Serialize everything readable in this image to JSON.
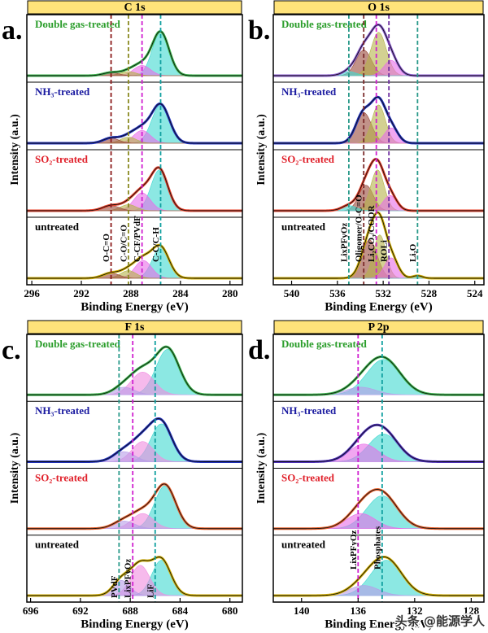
{
  "watermark": "头条 @能源学人",
  "chart_data": [
    {
      "type": "xps",
      "panel_label": "a.",
      "title": "C 1s",
      "xlabel": "Binding Energy (eV)",
      "ylabel": "Intensity (a.u.)",
      "xlim": [
        296.4,
        279
      ],
      "xticks": [
        296,
        292,
        288,
        284,
        280
      ],
      "ylim": [
        0,
        1.1
      ],
      "reference_lines": [
        {
          "x": 289.6,
          "label": "O-C=O",
          "color": "#8b1a1a"
        },
        {
          "x": 288.2,
          "label": "C-O/C=O",
          "color": "#8a8a20"
        },
        {
          "x": 287.1,
          "label": "C-CF/PVdF",
          "color": "#d020d0"
        },
        {
          "x": 285.6,
          "label": "C-C/C-H",
          "color": "#10a0a0"
        }
      ],
      "series": [
        {
          "name": "Double gas-treated",
          "color": "#2a9d2a",
          "line_color": "#39b54a",
          "peaks": [
            {
              "center": 285.6,
              "fwhm": 1.6,
              "height": 0.85,
              "color": "#3fd9d0"
            },
            {
              "center": 287.1,
              "fwhm": 1.6,
              "height": 0.2,
              "color": "#e86de8"
            },
            {
              "center": 288.2,
              "fwhm": 1.5,
              "height": 0.08,
              "color": "#b5b34a"
            },
            {
              "center": 289.6,
              "fwhm": 1.5,
              "height": 0.06,
              "color": "#9a4a3a"
            }
          ]
        },
        {
          "name": "NH₃-treated",
          "color": "#1a1aa0",
          "line_color": "#2030c0",
          "peaks": [
            {
              "center": 285.6,
              "fwhm": 1.7,
              "height": 0.75,
              "color": "#3fd9d0"
            },
            {
              "center": 287.1,
              "fwhm": 1.6,
              "height": 0.25,
              "color": "#e86de8"
            },
            {
              "center": 288.2,
              "fwhm": 1.5,
              "height": 0.12,
              "color": "#b5b34a"
            },
            {
              "center": 289.6,
              "fwhm": 1.5,
              "height": 0.1,
              "color": "#9a4a3a"
            }
          ]
        },
        {
          "name": "SO₂-treated",
          "color": "#e0202a",
          "line_color": "#e8402a",
          "peaks": [
            {
              "center": 285.7,
              "fwhm": 1.6,
              "height": 0.8,
              "color": "#3fd9d0"
            },
            {
              "center": 287.1,
              "fwhm": 1.6,
              "height": 0.35,
              "color": "#e86de8"
            },
            {
              "center": 288.2,
              "fwhm": 1.5,
              "height": 0.12,
              "color": "#b5b34a"
            },
            {
              "center": 289.6,
              "fwhm": 1.6,
              "height": 0.1,
              "color": "#9a4a3a"
            }
          ]
        },
        {
          "name": "untreated",
          "color": "#000000",
          "line_color": "#d4b000",
          "peaks": [
            {
              "center": 285.6,
              "fwhm": 1.6,
              "height": 0.6,
              "color": "#3fd9d0"
            },
            {
              "center": 287.0,
              "fwhm": 1.6,
              "height": 0.35,
              "color": "#e86de8"
            },
            {
              "center": 288.2,
              "fwhm": 1.5,
              "height": 0.15,
              "color": "#b5b34a"
            },
            {
              "center": 289.6,
              "fwhm": 1.6,
              "height": 0.1,
              "color": "#9a4a3a"
            }
          ]
        }
      ]
    },
    {
      "type": "xps",
      "panel_label": "b.",
      "title": "O 1s",
      "xlabel": "Binding Energy (eV)",
      "ylabel": "Intensity (a.u.)",
      "xlim": [
        541.6,
        523.2
      ],
      "xticks": [
        540,
        536,
        532,
        528,
        524
      ],
      "ylim": [
        0,
        1.1
      ],
      "reference_lines": [
        {
          "x": 535.0,
          "label": "LixPFyOz",
          "color": "#2a9a8a"
        },
        {
          "x": 533.7,
          "label": "Oligomer/O-C=O",
          "color": "#7a2a2a"
        },
        {
          "x": 532.6,
          "label": "Li₂CO₃/COOR",
          "color": "#d020d0"
        },
        {
          "x": 531.5,
          "label": "ROLi",
          "color": "#7030a0"
        },
        {
          "x": 529.0,
          "label": "Li₂O",
          "color": "#2a9a8a"
        }
      ],
      "series": [
        {
          "name": "Double gas-treated",
          "color": "#2a9d2a",
          "line_color": "#8a5ad0",
          "peaks": [
            {
              "center": 533.7,
              "fwhm": 1.6,
              "height": 0.5,
              "color": "#9a4a3a"
            },
            {
              "center": 532.4,
              "fwhm": 1.6,
              "height": 0.85,
              "color": "#b5b34a"
            },
            {
              "center": 531.3,
              "fwhm": 1.5,
              "height": 0.3,
              "color": "#e86de8"
            },
            {
              "center": 535.0,
              "fwhm": 1.5,
              "height": 0.08,
              "color": "#3fd9d0"
            }
          ]
        },
        {
          "name": "NH₃-treated",
          "color": "#1a1aa0",
          "line_color": "#2030c0",
          "peaks": [
            {
              "center": 533.7,
              "fwhm": 1.6,
              "height": 0.6,
              "color": "#9a4a3a"
            },
            {
              "center": 532.4,
              "fwhm": 1.4,
              "height": 0.75,
              "color": "#b5b34a"
            },
            {
              "center": 531.3,
              "fwhm": 1.4,
              "height": 0.3,
              "color": "#e86de8"
            }
          ]
        },
        {
          "name": "SO₂-treated",
          "color": "#e0202a",
          "line_color": "#e8402a",
          "peaks": [
            {
              "center": 533.5,
              "fwhm": 1.5,
              "height": 0.5,
              "color": "#9a4a3a"
            },
            {
              "center": 532.5,
              "fwhm": 1.4,
              "height": 0.8,
              "color": "#b5b34a"
            },
            {
              "center": 531.4,
              "fwhm": 1.4,
              "height": 0.3,
              "color": "#e86de8"
            },
            {
              "center": 535.0,
              "fwhm": 1.5,
              "height": 0.1,
              "color": "#3fd9d0"
            }
          ]
        },
        {
          "name": "untreated",
          "color": "#000000",
          "line_color": "#d4b000",
          "peaks": [
            {
              "center": 533.2,
              "fwhm": 1.6,
              "height": 0.75,
              "color": "#9a4a3a"
            },
            {
              "center": 532.3,
              "fwhm": 1.3,
              "height": 0.85,
              "color": "#b5b34a"
            },
            {
              "center": 531.3,
              "fwhm": 1.4,
              "height": 0.4,
              "color": "#e86de8"
            },
            {
              "center": 529.0,
              "fwhm": 1.0,
              "height": 0.05,
              "color": "#3fd9d0"
            }
          ]
        }
      ]
    },
    {
      "type": "xps",
      "panel_label": "c.",
      "title": "F 1s",
      "xlabel": "Binding Energy (eV)",
      "ylabel": "Intensity (a.u.)",
      "xlim": [
        696.3,
        679
      ],
      "xticks": [
        696,
        692,
        688,
        684,
        680
      ],
      "ylim": [
        0,
        1.1
      ],
      "reference_lines": [
        {
          "x": 688.9,
          "label": "PVdF",
          "color": "#2a9a8a"
        },
        {
          "x": 687.8,
          "label": "LixPFyOz",
          "color": "#d020d0"
        },
        {
          "x": 686.0,
          "label": "LiF",
          "color": "#10a0a0"
        }
      ],
      "series": [
        {
          "name": "Double gas-treated",
          "color": "#2a9d2a",
          "line_color": "#39b54a",
          "peaks": [
            {
              "center": 685.0,
              "fwhm": 2.2,
              "height": 0.9,
              "color": "#3fd9d0"
            },
            {
              "center": 687.0,
              "fwhm": 2.2,
              "height": 0.45,
              "color": "#f08ce0"
            },
            {
              "center": 688.5,
              "fwhm": 2.0,
              "height": 0.15,
              "color": "#b79be8"
            }
          ]
        },
        {
          "name": "NH₃-treated",
          "color": "#1a1aa0",
          "line_color": "#2030c0",
          "peaks": [
            {
              "center": 685.5,
              "fwhm": 2.0,
              "height": 0.75,
              "color": "#3fd9d0"
            },
            {
              "center": 687.0,
              "fwhm": 2.0,
              "height": 0.4,
              "color": "#f08ce0"
            },
            {
              "center": 688.5,
              "fwhm": 2.0,
              "height": 0.2,
              "color": "#b79be8"
            }
          ]
        },
        {
          "name": "SO₂-treated",
          "color": "#e0202a",
          "line_color": "#e8602a",
          "peaks": [
            {
              "center": 685.2,
              "fwhm": 2.0,
              "height": 0.85,
              "color": "#3fd9d0"
            },
            {
              "center": 687.0,
              "fwhm": 2.0,
              "height": 0.3,
              "color": "#f08ce0"
            },
            {
              "center": 688.5,
              "fwhm": 2.0,
              "height": 0.15,
              "color": "#b79be8"
            }
          ]
        },
        {
          "name": "untreated",
          "color": "#000000",
          "line_color": "#d4b000",
          "peaks": [
            {
              "center": 685.5,
              "fwhm": 1.8,
              "height": 0.7,
              "color": "#3fd9d0"
            },
            {
              "center": 687.2,
              "fwhm": 1.8,
              "height": 0.6,
              "color": "#f08ce0"
            },
            {
              "center": 688.7,
              "fwhm": 1.6,
              "height": 0.3,
              "color": "#b79be8"
            }
          ]
        }
      ]
    },
    {
      "type": "xps",
      "panel_label": "d.",
      "title": "P 2p",
      "xlabel": "Binding Energy (eV)",
      "ylabel": "Intensity (a.u.)",
      "xlim": [
        142,
        127.1
      ],
      "xticks": [
        140,
        136,
        132,
        128
      ],
      "ylim": [
        0,
        1.1
      ],
      "reference_lines": [
        {
          "x": 136.0,
          "label": "LixPFyOz",
          "color": "#d020d0"
        },
        {
          "x": 134.3,
          "label": "Phosphates",
          "color": "#10a0a0"
        }
      ],
      "series": [
        {
          "name": "Double gas-treated",
          "color": "#2a9d2a",
          "line_color": "#39b54a",
          "peaks": [
            {
              "center": 134.2,
              "fwhm": 2.8,
              "height": 0.7,
              "color": "#3fd9d0"
            },
            {
              "center": 135.8,
              "fwhm": 2.5,
              "height": 0.15,
              "color": "#b79be8"
            }
          ]
        },
        {
          "name": "NH₃-treated",
          "color": "#1a1aa0",
          "line_color": "#5030c0",
          "peaks": [
            {
              "center": 134.2,
              "fwhm": 2.5,
              "height": 0.55,
              "color": "#3fd9d0"
            },
            {
              "center": 135.6,
              "fwhm": 2.4,
              "height": 0.35,
              "color": "#e86de8"
            }
          ]
        },
        {
          "name": "SO₂-treated",
          "color": "#e0202a",
          "line_color": "#e8602a",
          "peaks": [
            {
              "center": 134.3,
              "fwhm": 2.6,
              "height": 0.65,
              "color": "#3fd9d0"
            },
            {
              "center": 135.8,
              "fwhm": 2.4,
              "height": 0.3,
              "color": "#e86de8"
            }
          ]
        },
        {
          "name": "untreated",
          "color": "#000000",
          "line_color": "#d4b000",
          "peaks": [
            {
              "center": 134.0,
              "fwhm": 2.6,
              "height": 0.7,
              "color": "#3fd9d0"
            },
            {
              "center": 135.6,
              "fwhm": 2.4,
              "height": 0.2,
              "color": "#b79be8"
            }
          ]
        }
      ]
    }
  ]
}
